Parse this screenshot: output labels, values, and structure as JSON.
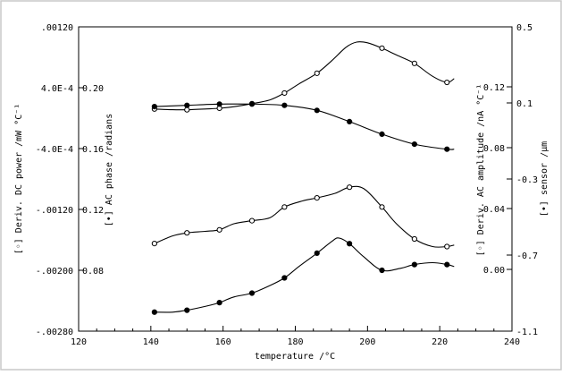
{
  "chart_data": {
    "type": "line",
    "title": "",
    "xlabel": "temperature /°C",
    "xlim": [
      120,
      240
    ],
    "x_ticks": [
      "120",
      "140",
      "160",
      "180",
      "200",
      "220",
      "240"
    ],
    "left_axes": [
      {
        "label": "[◦] Deriv. DC power /mW °C⁻¹",
        "ylim": [
          -0.0028,
          0.0012
        ],
        "ticks": [
          ".00120",
          "4.0E-4",
          "-4.0E-4",
          "-.00120",
          "-.00200",
          "-.00280"
        ]
      },
      {
        "label": "[•] AC phase /radians",
        "ticks": [
          "0.20",
          "0.16",
          "0.12",
          "0.08"
        ]
      }
    ],
    "right_axes": [
      {
        "label": "[◦] Deriv. AC amplitude /nA °C⁻¹",
        "ticks": [
          "0.12",
          "0.08",
          "0.04",
          "0.00"
        ]
      },
      {
        "label": "[•] sensor /µm",
        "ylim": [
          -1.1,
          0.5
        ],
        "ticks": [
          "0.5",
          "0.1",
          "-0.3",
          "-0.7",
          "-1.1"
        ]
      }
    ],
    "series": [
      {
        "axis": "Deriv. DC power",
        "marker": "open",
        "x": [
          141,
          146,
          150,
          155,
          159,
          163,
          168,
          173,
          177,
          181,
          186,
          190,
          194,
          197,
          200,
          204,
          208,
          213,
          218,
          222,
          224
        ],
        "y": [
          0.00012,
          0.00011,
          0.00011,
          0.00012,
          0.00013,
          0.00015,
          0.00019,
          0.00024,
          0.00033,
          0.00045,
          0.00059,
          0.00075,
          0.00093,
          0.001,
          0.00099,
          0.00092,
          0.00083,
          0.00072,
          0.00055,
          0.00047,
          0.00052
        ]
      },
      {
        "axis": "AC phase",
        "marker": "filled",
        "x": [
          141,
          150,
          159,
          168,
          177,
          186,
          195,
          204,
          213,
          222,
          224
        ],
        "y": [
          0.176,
          0.177,
          0.178,
          0.178,
          0.177,
          0.173,
          0.164,
          0.154,
          0.146,
          0.142,
          0.142
        ]
      },
      {
        "axis": "Deriv. AC amplitude",
        "marker": "open",
        "x": [
          141,
          146,
          150,
          155,
          159,
          163,
          168,
          173,
          177,
          182,
          186,
          191,
          195,
          199,
          204,
          208,
          213,
          218,
          222,
          224
        ],
        "y": [
          0.017,
          0.022,
          0.024,
          0.025,
          0.026,
          0.03,
          0.032,
          0.034,
          0.041,
          0.045,
          0.047,
          0.05,
          0.054,
          0.053,
          0.041,
          0.03,
          0.02,
          0.015,
          0.015,
          0.016
        ]
      },
      {
        "axis": "sensor",
        "marker": "filled",
        "x": [
          141,
          146,
          150,
          155,
          159,
          163,
          168,
          173,
          177,
          181,
          186,
          190,
          192,
          195,
          199,
          204,
          209,
          213,
          218,
          222,
          224
        ],
        "y": [
          -1.0,
          -1.0,
          -0.99,
          -0.97,
          -0.95,
          -0.92,
          -0.9,
          -0.86,
          -0.82,
          -0.76,
          -0.69,
          -0.63,
          -0.61,
          -0.64,
          -0.71,
          -0.78,
          -0.77,
          -0.75,
          -0.74,
          -0.75,
          -0.76
        ]
      }
    ]
  }
}
